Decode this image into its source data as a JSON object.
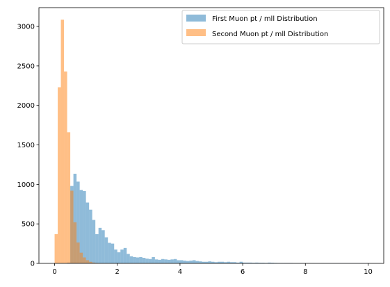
{
  "chart_data": {
    "type": "bar",
    "title": "",
    "xlabel": "",
    "ylabel": "",
    "xlim": [
      -0.5,
      10.5
    ],
    "ylim": [
      0,
      3238
    ],
    "bin_width": 0.1,
    "xticks": [
      0,
      2,
      4,
      6,
      8,
      10
    ],
    "yticks": [
      0,
      500,
      1000,
      1500,
      2000,
      2500,
      3000
    ],
    "legend_position": "top-right",
    "grid": false,
    "series": [
      {
        "name": "First Muon pt / mll Distribution",
        "color": "#1f77b4",
        "opacity": 0.5,
        "bins": [
          [
            0.4,
            10
          ],
          [
            0.5,
            980
          ],
          [
            0.6,
            1135
          ],
          [
            0.7,
            1035
          ],
          [
            0.8,
            930
          ],
          [
            0.9,
            915
          ],
          [
            1.0,
            770
          ],
          [
            1.1,
            680
          ],
          [
            1.2,
            550
          ],
          [
            1.3,
            370
          ],
          [
            1.4,
            450
          ],
          [
            1.5,
            420
          ],
          [
            1.6,
            330
          ],
          [
            1.7,
            260
          ],
          [
            1.8,
            250
          ],
          [
            1.9,
            175
          ],
          [
            2.0,
            140
          ],
          [
            2.1,
            175
          ],
          [
            2.2,
            195
          ],
          [
            2.3,
            120
          ],
          [
            2.4,
            90
          ],
          [
            2.5,
            80
          ],
          [
            2.6,
            75
          ],
          [
            2.7,
            80
          ],
          [
            2.8,
            70
          ],
          [
            2.9,
            60
          ],
          [
            3.0,
            55
          ],
          [
            3.1,
            80
          ],
          [
            3.2,
            50
          ],
          [
            3.3,
            45
          ],
          [
            3.4,
            55
          ],
          [
            3.5,
            50
          ],
          [
            3.6,
            45
          ],
          [
            3.7,
            50
          ],
          [
            3.8,
            55
          ],
          [
            3.9,
            40
          ],
          [
            4.0,
            40
          ],
          [
            4.1,
            35
          ],
          [
            4.2,
            30
          ],
          [
            4.3,
            35
          ],
          [
            4.4,
            40
          ],
          [
            4.5,
            30
          ],
          [
            4.6,
            25
          ],
          [
            4.7,
            20
          ],
          [
            4.8,
            20
          ],
          [
            4.9,
            25
          ],
          [
            5.0,
            20
          ],
          [
            5.1,
            15
          ],
          [
            5.2,
            20
          ],
          [
            5.3,
            20
          ],
          [
            5.4,
            15
          ],
          [
            5.5,
            20
          ],
          [
            5.6,
            15
          ],
          [
            5.7,
            15
          ],
          [
            5.8,
            10
          ],
          [
            5.9,
            20
          ],
          [
            6.0,
            10
          ],
          [
            6.1,
            10
          ],
          [
            6.2,
            10
          ],
          [
            6.3,
            8
          ],
          [
            6.4,
            10
          ],
          [
            6.5,
            8
          ],
          [
            6.6,
            8
          ],
          [
            6.7,
            6
          ],
          [
            6.8,
            10
          ],
          [
            6.9,
            8
          ],
          [
            7.0,
            6
          ],
          [
            7.1,
            5
          ],
          [
            7.2,
            5
          ],
          [
            7.3,
            5
          ],
          [
            7.4,
            5
          ],
          [
            7.5,
            5
          ],
          [
            7.6,
            4
          ],
          [
            7.7,
            4
          ],
          [
            7.8,
            4
          ],
          [
            7.9,
            3
          ],
          [
            8.0,
            3
          ],
          [
            8.1,
            3
          ],
          [
            8.2,
            3
          ],
          [
            8.3,
            2
          ],
          [
            8.4,
            2
          ],
          [
            8.5,
            3
          ],
          [
            8.6,
            2
          ],
          [
            8.7,
            2
          ],
          [
            8.8,
            2
          ],
          [
            8.9,
            2
          ],
          [
            9.0,
            2
          ],
          [
            9.1,
            2
          ],
          [
            9.2,
            2
          ],
          [
            9.3,
            2
          ],
          [
            9.4,
            2
          ],
          [
            9.5,
            2
          ],
          [
            9.6,
            2
          ],
          [
            9.7,
            2
          ],
          [
            9.8,
            2
          ],
          [
            9.9,
            2
          ]
        ]
      },
      {
        "name": "Second Muon pt / mll Distribution",
        "color": "#ff7f0e",
        "opacity": 0.5,
        "bins": [
          [
            0.0,
            370
          ],
          [
            0.1,
            2230
          ],
          [
            0.2,
            3085
          ],
          [
            0.3,
            2430
          ],
          [
            0.4,
            1660
          ],
          [
            0.5,
            920
          ],
          [
            0.6,
            520
          ],
          [
            0.7,
            265
          ],
          [
            0.8,
            135
          ],
          [
            0.9,
            75
          ],
          [
            1.0,
            40
          ],
          [
            1.1,
            20
          ],
          [
            1.2,
            10
          ],
          [
            1.3,
            5
          ]
        ]
      }
    ]
  }
}
